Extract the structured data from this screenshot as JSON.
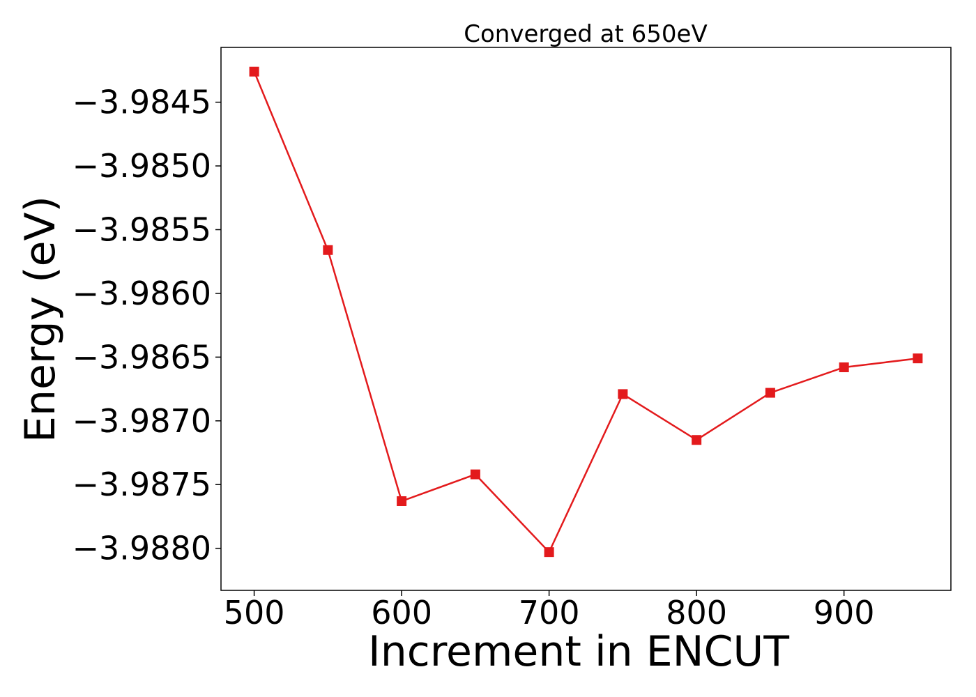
{
  "chart_data": {
    "type": "line",
    "title": "Converged at 650eV",
    "xlabel": "Increment in ENCUT",
    "ylabel": "Energy (eV)",
    "x": [
      500,
      550,
      600,
      650,
      700,
      750,
      800,
      850,
      900,
      950
    ],
    "series": [
      {
        "values": [
          -3.98426,
          -3.98566,
          -3.98763,
          -3.98742,
          -3.98803,
          -3.98679,
          -3.98715,
          -3.98678,
          -3.98658,
          -3.98651
        ],
        "color": "#e31a1c",
        "marker": "square"
      }
    ],
    "xlim": [
      477.5,
      972.5
    ],
    "ylim": [
      -3.98833,
      -3.98407
    ],
    "xticks": [
      500,
      600,
      700,
      800,
      900
    ],
    "xtick_labels": [
      "500",
      "600",
      "700",
      "800",
      "900"
    ],
    "yticks": [
      -3.9845,
      -3.985,
      -3.9855,
      -3.986,
      -3.9865,
      -3.987,
      -3.9875,
      -3.988
    ],
    "ytick_labels": [
      "−3.9845",
      "−3.9850",
      "−3.9855",
      "−3.9860",
      "−3.9865",
      "−3.9870",
      "−3.9875",
      "−3.9880"
    ],
    "grid": false,
    "legend": "none"
  }
}
